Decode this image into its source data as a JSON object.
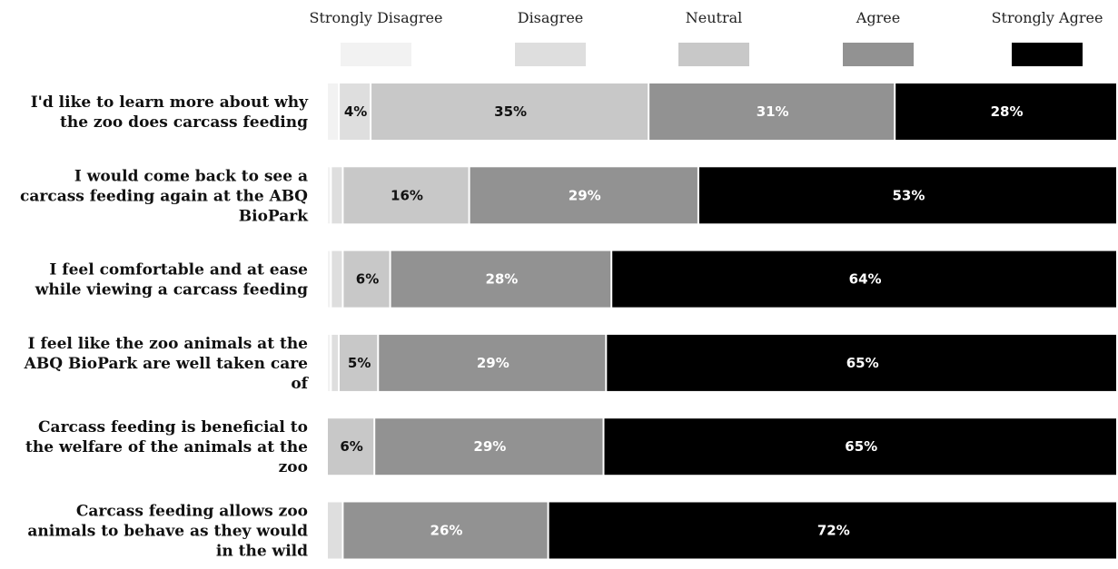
{
  "chart_data": {
    "type": "bar",
    "orientation": "horizontal",
    "stacked": true,
    "title": "",
    "xlabel": "",
    "ylabel": "",
    "legend_position": "top",
    "grid": false,
    "categories": [
      "I'd like to learn more about why the zoo does carcass feeding",
      "I would come back to see a carcass feeding again at the ABQ BioPark",
      "I feel comfortable and at ease while viewing a carcass feeding",
      "I feel like the zoo animals at the ABQ BioPark are well taken care of",
      "Carcass feeding is beneficial to the welfare of the animals at the zoo",
      "Carcass feeding allows zoo animals to behave as they would in the wild"
    ],
    "category_lines": [
      [
        "I'd like to learn more about why",
        "the zoo does carcass feeding"
      ],
      [
        "I would come back to see a",
        "carcass feeding again at the ABQ",
        "BioPark"
      ],
      [
        "I feel comfortable and at ease",
        "while viewing a carcass feeding"
      ],
      [
        "I feel like the zoo animals at the",
        "ABQ BioPark are well taken care",
        "of"
      ],
      [
        "Carcass feeding is beneficial to",
        "the welfare of the animals at the",
        "zoo"
      ],
      [
        "Carcass feeding allows zoo",
        "animals to behave as they would",
        "in the wild"
      ]
    ],
    "series": [
      {
        "name": "Strongly Disagree",
        "color": "#f2f2f2",
        "text_color": "#111111",
        "values": [
          1.5,
          0.5,
          0.5,
          0.5,
          0,
          0
        ],
        "labels": [
          "",
          "",
          "",
          "",
          "",
          ""
        ]
      },
      {
        "name": "Disagree",
        "color": "#dedede",
        "text_color": "#111111",
        "values": [
          4,
          1.5,
          1.5,
          1,
          0,
          2
        ],
        "labels": [
          "4%",
          "",
          "",
          "",
          "",
          ""
        ]
      },
      {
        "name": "Neutral",
        "color": "#c8c8c8",
        "text_color": "#111111",
        "values": [
          35,
          16,
          6,
          5,
          6,
          0
        ],
        "labels": [
          "35%",
          "16%",
          "6%",
          "5%",
          "6%",
          ""
        ]
      },
      {
        "name": "Agree",
        "color": "#929292",
        "text_color": "#ffffff",
        "values": [
          31,
          29,
          28,
          29,
          29,
          26
        ],
        "labels": [
          "31%",
          "29%",
          "28%",
          "29%",
          "29%",
          "26%"
        ]
      },
      {
        "name": "Strongly Agree",
        "color": "#000000",
        "text_color": "#ffffff",
        "values": [
          28,
          53,
          64,
          65,
          65,
          72
        ],
        "labels": [
          "28%",
          "53%",
          "64%",
          "65%",
          "65%",
          "72%"
        ]
      }
    ]
  }
}
